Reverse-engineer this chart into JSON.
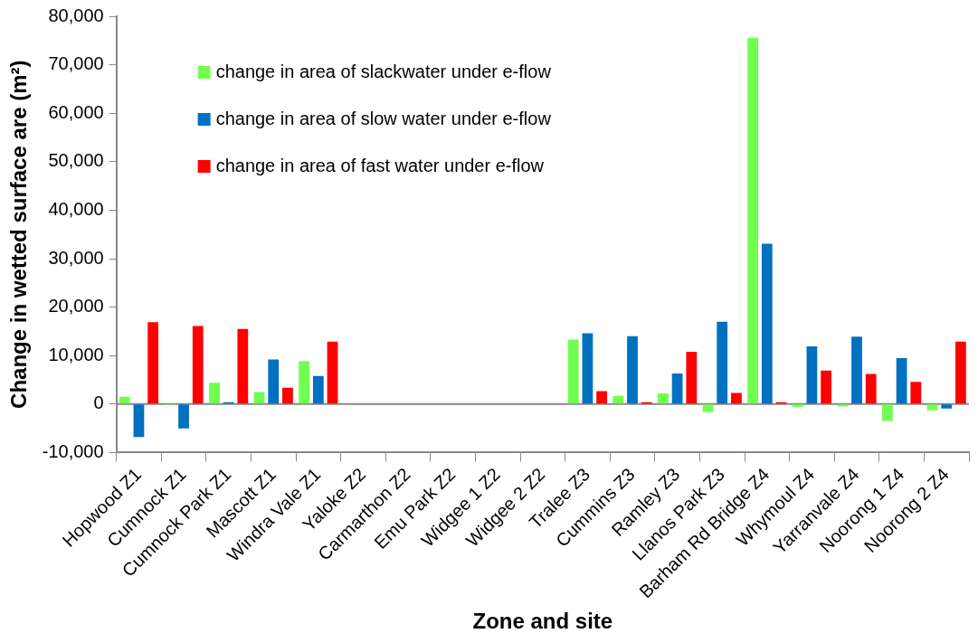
{
  "chart_data": {
    "type": "bar",
    "xlabel": "Zone and site",
    "ylabel": "Change in wetted surface are (m²)",
    "categories": [
      "Hopwood Z1",
      "Cumnock Z1",
      "Cumnock Park Z1",
      "Mascott Z1",
      "Windra Vale Z1",
      "Yaloke Z2",
      "Carmarthon Z2",
      "Emu Park Z2",
      "Widgee 1 Z2",
      "Widgee 2 Z2",
      "Tralee Z3",
      "Cummins Z3",
      "Ramley Z3",
      "Llanos Park Z3",
      "Barham Rd Bridge Z4",
      "Whymoul Z4",
      "Yarranvale Z4",
      "Noorong 1 Z4",
      "Noorong 2 Z4"
    ],
    "series": [
      {
        "name": "change in area of slackwater under e-flow",
        "color": "#70ff50",
        "values": [
          1500,
          -200,
          4400,
          2500,
          8900,
          null,
          null,
          null,
          null,
          null,
          13300,
          1700,
          2200,
          -1600,
          75500,
          -600,
          -500,
          -3500,
          -1300
        ]
      },
      {
        "name": "change in area of slow water under e-flow",
        "color": "#0070c0",
        "values": [
          -6800,
          -5000,
          400,
          9200,
          5800,
          null,
          null,
          null,
          null,
          null,
          14600,
          14000,
          6300,
          17000,
          33100,
          11900,
          13900,
          9500,
          -900
        ]
      },
      {
        "name": "change in area of fast water under e-flow",
        "color": "#ff0000",
        "values": [
          16900,
          16100,
          15500,
          3400,
          12900,
          null,
          null,
          null,
          null,
          null,
          2700,
          400,
          10800,
          2300,
          400,
          6900,
          6200,
          4600,
          12900
        ]
      }
    ],
    "ylim": [
      -10000,
      80000
    ],
    "yticks": [
      {
        "value": -10000,
        "label": "-10,000"
      },
      0,
      {
        "value": 10000,
        "label": "10,000"
      },
      {
        "value": 20000,
        "label": "20,000"
      },
      {
        "value": 30000,
        "label": "30,000"
      },
      {
        "value": 40000,
        "label": "40,000"
      },
      {
        "value": 50000,
        "label": "50,000"
      },
      {
        "value": 60000,
        "label": "60,000"
      },
      {
        "value": 70000,
        "label": "70,000"
      },
      {
        "value": 80000,
        "label": "80,000"
      }
    ],
    "legend": "top left"
  }
}
